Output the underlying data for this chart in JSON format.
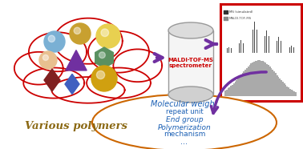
{
  "bg_color": "#ffffff",
  "cloud_color": "#cc0000",
  "maldi_text": "MALDI-TOF-MS\nspectrometer",
  "maldi_color": "#cc0000",
  "various_polymers_text": "Various polymers",
  "arrow_color": "#7030a0",
  "spectrum_box_color": "#cc0000",
  "bubble_color": "#cc6600",
  "bubble_text_color": "#1a5fb4",
  "bubble_lines": [
    "Molecular weight",
    "repeat unit",
    "End group",
    "Polymerization",
    "mechanism",
    "..."
  ],
  "bubble_line_styles": [
    "italic",
    "normal",
    "italic",
    "italic",
    "normal",
    "normal"
  ],
  "bubble_line_sizes": [
    7.0,
    6.0,
    6.5,
    6.5,
    6.5,
    7.0
  ]
}
